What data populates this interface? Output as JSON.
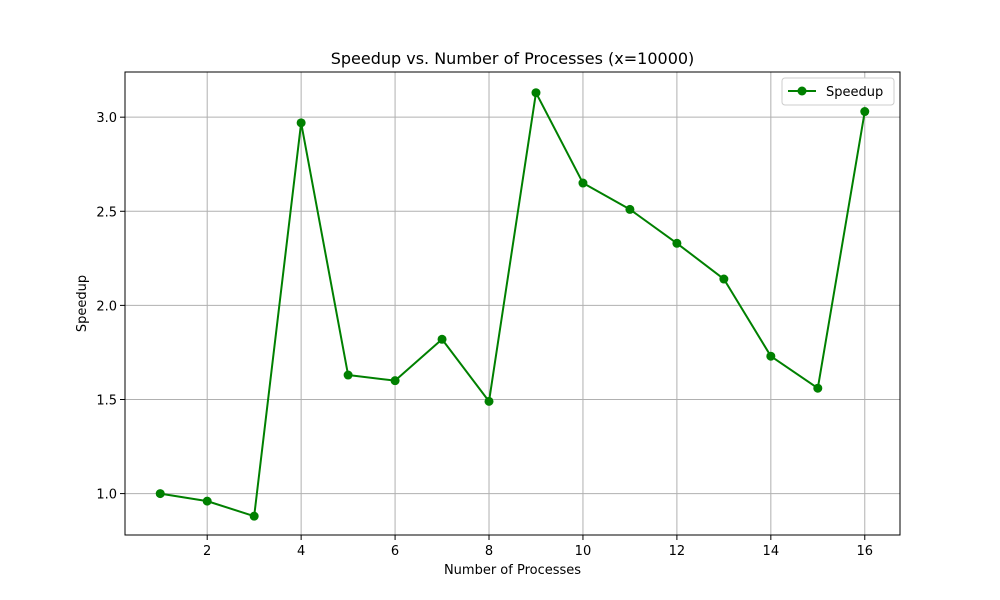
{
  "chart_data": {
    "type": "line",
    "title": "Speedup vs. Number of Processes (x=10000)",
    "xlabel": "Number of Processes",
    "ylabel": "Speedup",
    "x": [
      1,
      2,
      3,
      4,
      5,
      6,
      7,
      8,
      9,
      10,
      11,
      12,
      13,
      14,
      15,
      16
    ],
    "series": [
      {
        "name": "Speedup",
        "color": "#008000",
        "marker": "circle",
        "values": [
          1.0,
          0.96,
          0.88,
          2.97,
          1.63,
          1.6,
          1.82,
          1.49,
          3.13,
          2.65,
          2.51,
          2.33,
          2.14,
          1.73,
          1.56,
          3.03
        ]
      }
    ],
    "xlim": [
      0.25,
      16.75
    ],
    "ylim": [
      0.78,
      3.24
    ],
    "xticks": [
      "2",
      "4",
      "6",
      "8",
      "10",
      "12",
      "14",
      "16"
    ],
    "yticks": [
      "1.0",
      "1.5",
      "2.0",
      "2.5",
      "3.0"
    ],
    "grid": true,
    "legend_position": "top-right"
  }
}
